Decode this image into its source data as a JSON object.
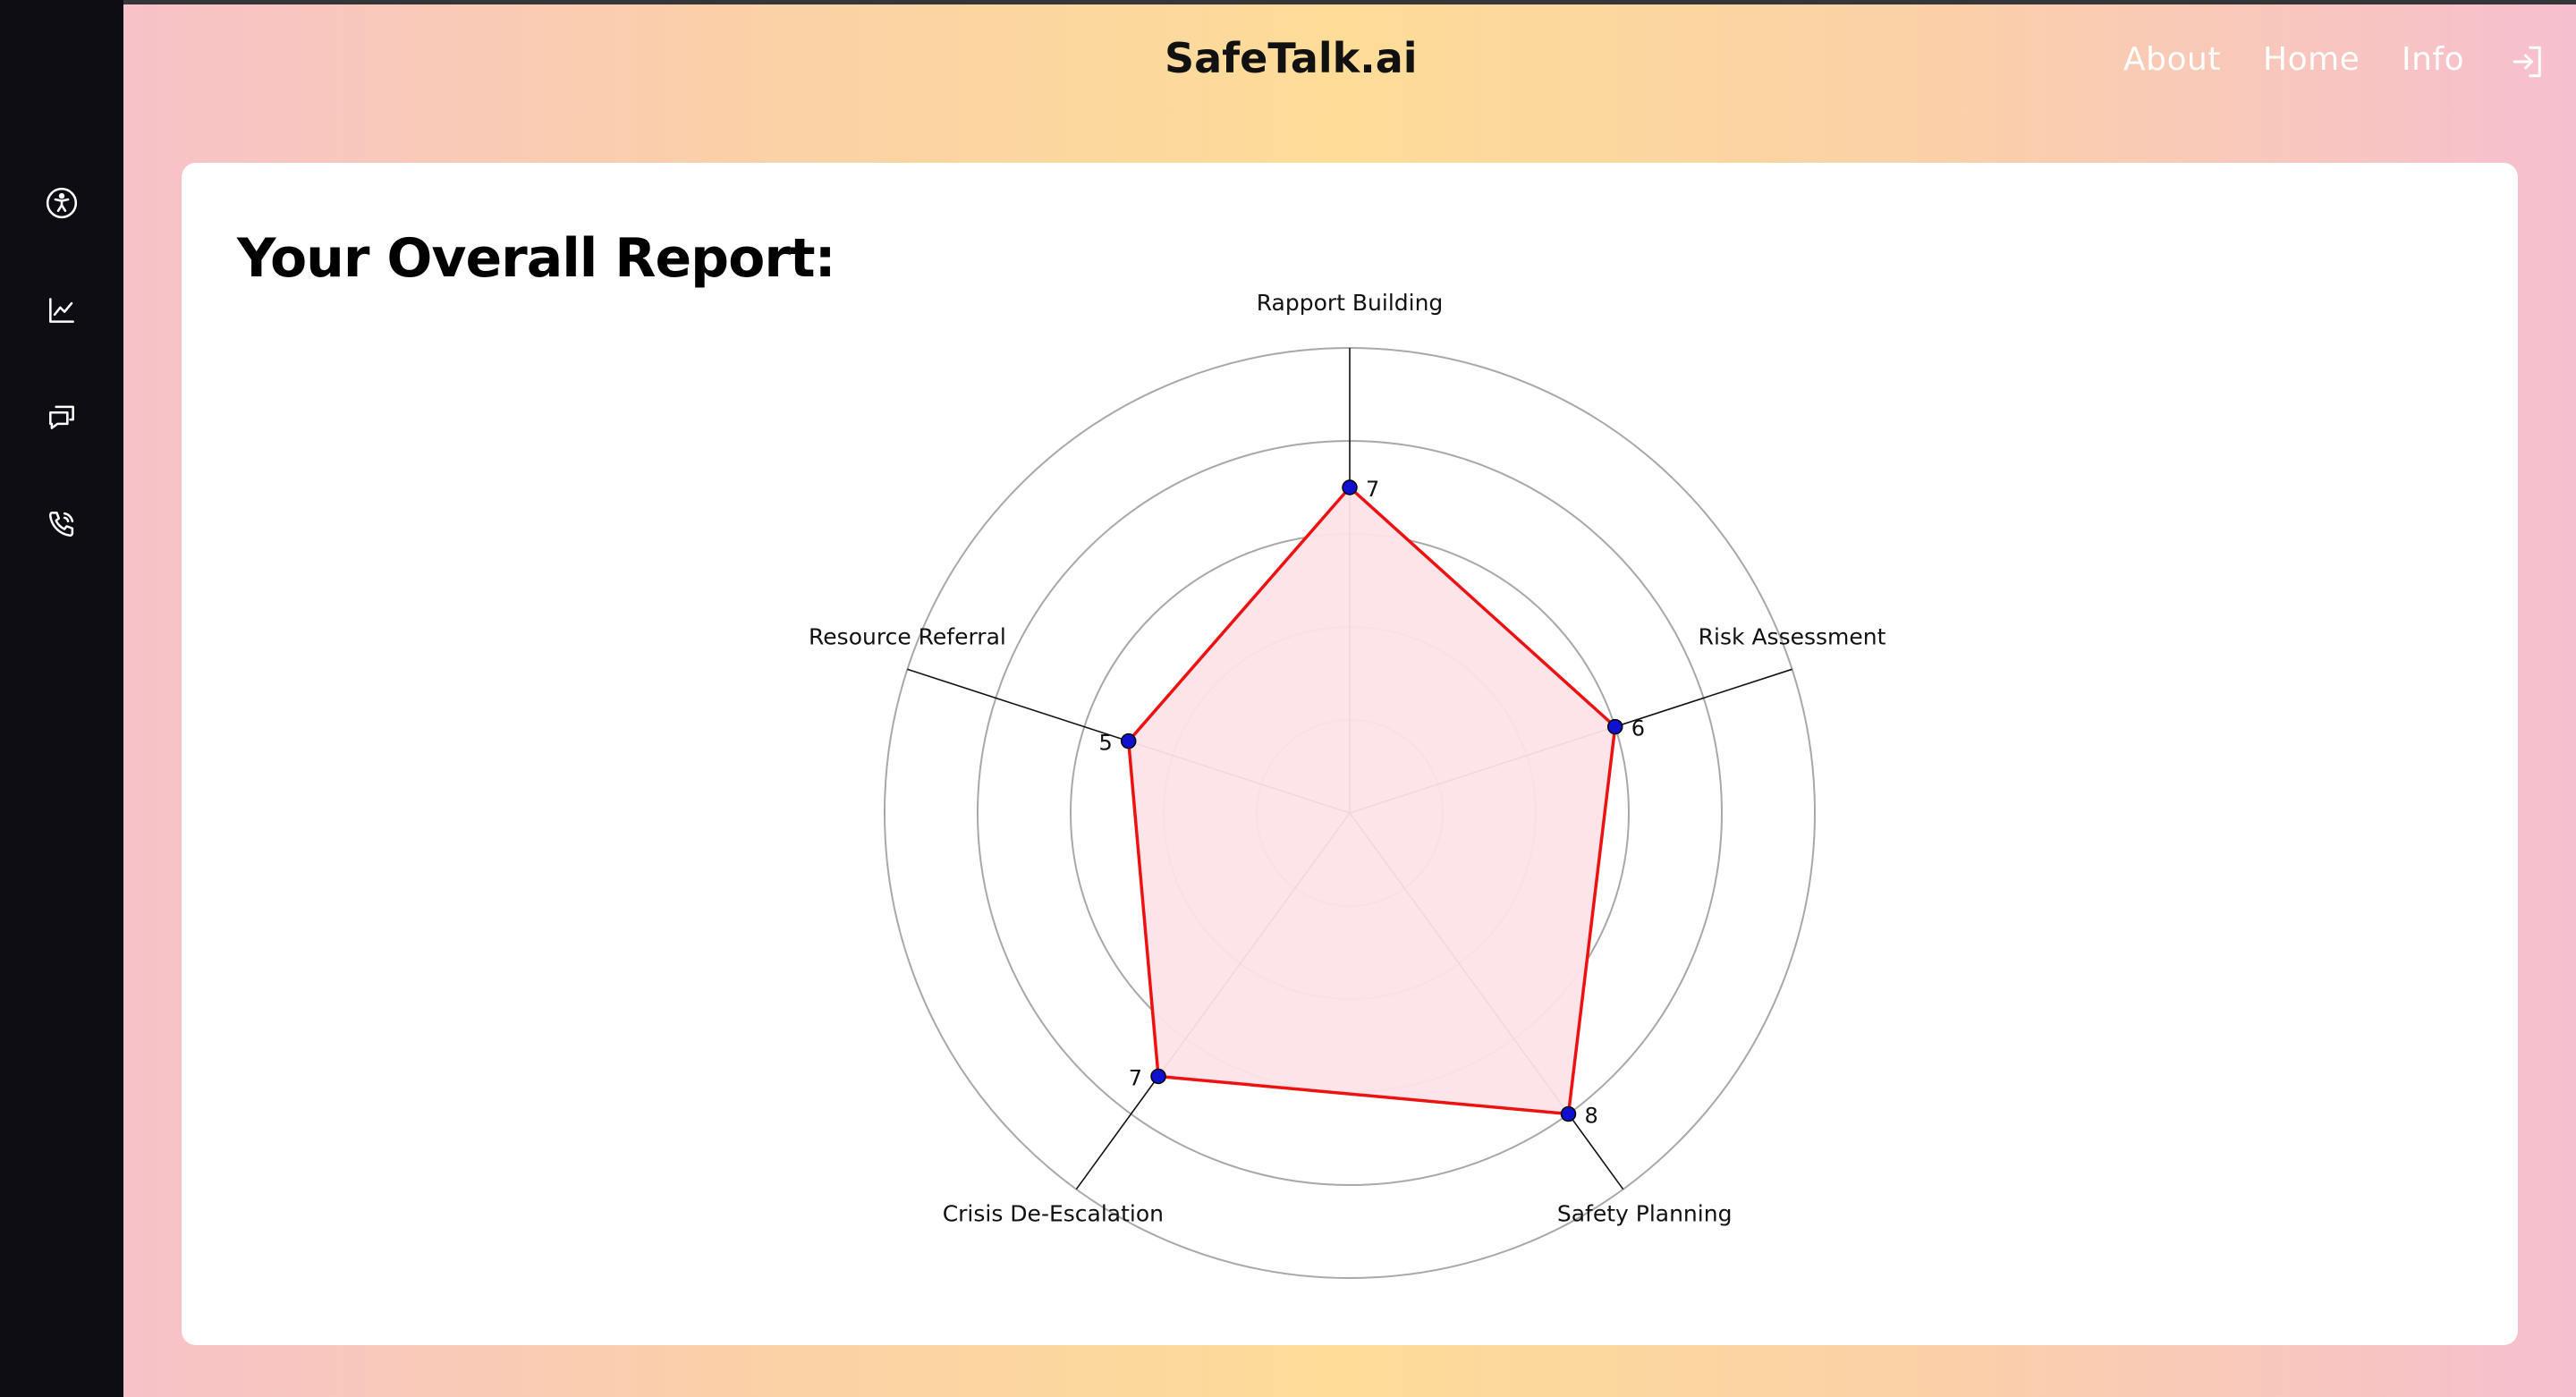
{
  "app": {
    "brand": "SafeTalk.ai"
  },
  "sidebar": {
    "icons": [
      {
        "name": "accessibility-icon"
      },
      {
        "name": "chart-icon"
      },
      {
        "name": "chat-icon"
      },
      {
        "name": "phone-icon"
      }
    ]
  },
  "nav": {
    "about": "About",
    "home": "Home",
    "info": "Info",
    "logout_icon": "logout-icon"
  },
  "report": {
    "title": "Your Overall Report:"
  },
  "chart_data": {
    "type": "radar",
    "axes": [
      "Rapport Building",
      "Risk Assessment",
      "Safety Planning",
      "Crisis De-Escalation",
      "Resource Referral"
    ],
    "values": [
      7,
      6,
      8,
      7,
      5
    ],
    "rmax": 10,
    "rings": 5,
    "grid": true,
    "colors": {
      "line": "#ee1111",
      "fill": "#fde3e8",
      "point": "#1010d0",
      "grid": "#a8a8a8",
      "spoke": "#111111"
    }
  }
}
